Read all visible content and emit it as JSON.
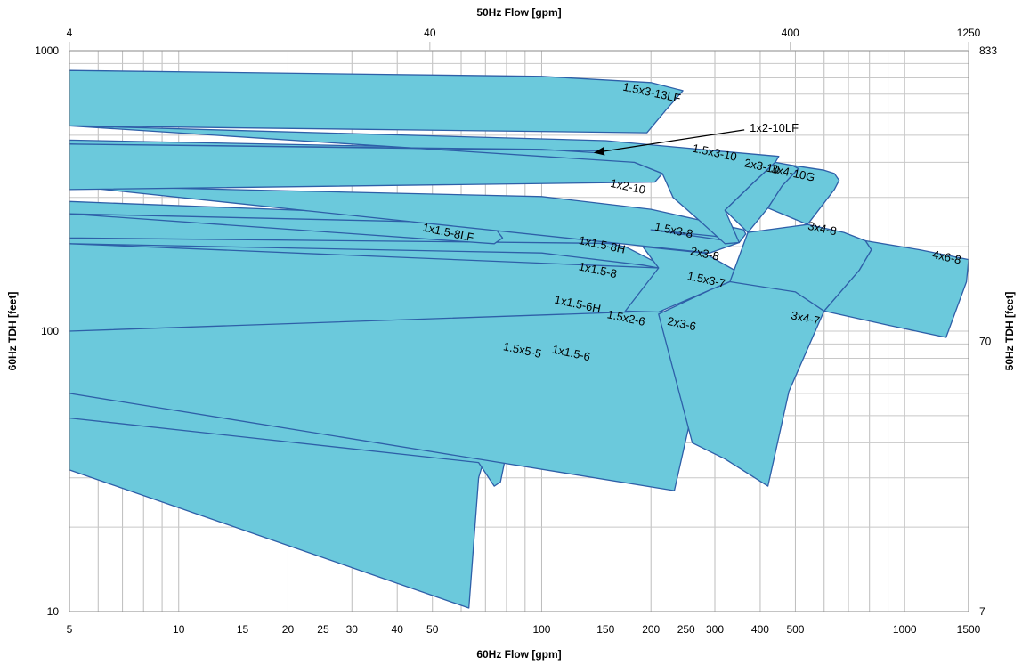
{
  "chart_data": {
    "type": "area",
    "title": "",
    "xlabel_bottom": "60Hz Flow [gpm]",
    "xlabel_top": "50Hz Flow [gpm]",
    "ylabel_left": "60Hz TDH [feet]",
    "ylabel_right": "50Hz TDH [feet]",
    "x_scale": "log",
    "y_scale": "log",
    "xlim": [
      5,
      1500
    ],
    "ylim": [
      10,
      1000
    ],
    "grid": true,
    "x_ticks_bottom": [
      5,
      10,
      15,
      20,
      25,
      30,
      40,
      50,
      100,
      150,
      200,
      250,
      300,
      400,
      500,
      1000,
      1500
    ],
    "x_ticks_top": [
      4,
      40,
      400,
      1250
    ],
    "y_ticks_left": [
      10,
      100,
      1000
    ],
    "y_ticks_right": [
      7,
      70,
      833
    ],
    "series": [
      {
        "name": "1.5x5-5",
        "label_at": [
          88,
          83
        ],
        "outline": [
          [
            5,
            104
          ],
          [
            30,
            99
          ],
          [
            55,
            93
          ],
          [
            80,
            86
          ],
          [
            84,
            80
          ],
          [
            67,
            30
          ],
          [
            63,
            10.3
          ],
          [
            5,
            32
          ]
        ]
      },
      {
        "name": "1x1.5-6",
        "label_at": [
          120,
          81
        ],
        "outline": [
          [
            5,
            148
          ],
          [
            50,
            133
          ],
          [
            100,
            115
          ],
          [
            125,
            102
          ],
          [
            135,
            93
          ],
          [
            129,
            84
          ],
          [
            91,
            39
          ],
          [
            85,
            38
          ],
          [
            80,
            37
          ],
          [
            77,
            29
          ],
          [
            74,
            28
          ],
          [
            67,
            34
          ],
          [
            5,
            49
          ]
        ]
      },
      {
        "name": "1x1.5-6H",
        "label_at": [
          125,
          121
        ],
        "outline": [
          [
            5,
            205
          ],
          [
            50,
            182
          ],
          [
            110,
            162
          ],
          [
            150,
            145
          ],
          [
            170,
            128
          ],
          [
            160,
            117
          ],
          [
            132,
            90
          ],
          [
            96,
            39.5
          ],
          [
            5,
            80
          ]
        ]
      },
      {
        "name": "1.5x2-6",
        "label_at": [
          170,
          108
        ],
        "outline": [
          [
            5,
            262
          ],
          [
            100,
            230
          ],
          [
            170,
            200
          ],
          [
            210,
            174
          ],
          [
            218,
            164
          ],
          [
            210,
            120
          ],
          [
            210,
            115
          ],
          [
            170,
            118
          ],
          [
            130,
            36
          ],
          [
            105,
            40
          ],
          [
            5,
            100
          ]
        ]
      },
      {
        "name": "2x3-6",
        "label_at": [
          242,
          103
        ],
        "outline": [
          [
            210,
            118
          ],
          [
            290,
            112
          ],
          [
            295,
            107
          ],
          [
            232,
            27
          ],
          [
            5,
            60
          ],
          [
            5,
            100
          ],
          [
            210,
            118
          ]
        ]
      },
      {
        "name": "1x1.5-8H",
        "label_at": [
          146,
          197
        ],
        "outline": [
          [
            5,
            290
          ],
          [
            100,
            250
          ],
          [
            170,
            220
          ],
          [
            190,
            205
          ],
          [
            5,
            215
          ]
        ]
      },
      {
        "name": "1x1.5-8",
        "label_at": [
          142,
          160
        ],
        "outline": [
          [
            5,
            205
          ],
          [
            100,
            190
          ],
          [
            190,
            172
          ],
          [
            210,
            168
          ]
        ]
      },
      {
        "name": "1.5x3-7",
        "label_at": [
          283,
          148
        ],
        "outline": [
          [
            190,
            200
          ],
          [
            280,
            190
          ],
          [
            340,
            165
          ],
          [
            350,
            155
          ],
          [
            290,
            140
          ],
          [
            210,
            117
          ],
          [
            170,
            118
          ],
          [
            210,
            168
          ],
          [
            190,
            200
          ]
        ]
      },
      {
        "name": "1x1.5-8LF",
        "label_at": [
          55,
          218
        ],
        "outline": [
          [
            5,
            262
          ],
          [
            50,
            245
          ],
          [
            75,
            230
          ],
          [
            78,
            215
          ],
          [
            74,
            205
          ]
        ]
      },
      {
        "name": "1.5x3-8",
        "label_at": [
          230,
          222
        ],
        "outline": [
          [
            5,
            330
          ],
          [
            100,
            302
          ],
          [
            200,
            272
          ],
          [
            280,
            247
          ],
          [
            360,
            230
          ],
          [
            365,
            222
          ],
          [
            350,
            207
          ],
          [
            290,
            190
          ]
        ]
      },
      {
        "name": "2x3-8",
        "label_at": [
          280,
          183
        ],
        "outline": [
          [
            200,
            230
          ],
          [
            300,
            218
          ],
          [
            350,
            207
          ]
        ]
      },
      {
        "name": "1x2-10",
        "label_at": [
          172,
          318
        ],
        "outline": [
          [
            5,
            480
          ],
          [
            100,
            445
          ],
          [
            180,
            400
          ],
          [
            215,
            365
          ],
          [
            205,
            340
          ],
          [
            5,
            320
          ]
        ]
      },
      {
        "name": "1.5x3-10",
        "label_at": [
          298,
          420
        ],
        "outline": [
          [
            5,
            540
          ],
          [
            150,
            478
          ],
          [
            300,
            440
          ],
          [
            450,
            420
          ],
          [
            440,
            400
          ],
          [
            380,
            335
          ],
          [
            320,
            270
          ],
          [
            350,
            207
          ],
          [
            320,
            205
          ],
          [
            270,
            250
          ],
          [
            230,
            300
          ],
          [
            215,
            365
          ],
          [
            180,
            400
          ]
        ]
      },
      {
        "name": "2x3-10",
        "label_at": [
          402,
          375
        ],
        "outline": [
          [
            440,
            400
          ],
          [
            490,
            390
          ],
          [
            510,
            380
          ],
          [
            460,
            330
          ],
          [
            420,
            275
          ],
          [
            370,
            225
          ],
          [
            320,
            270
          ],
          [
            380,
            335
          ],
          [
            440,
            400
          ]
        ]
      },
      {
        "name": "3x4-10G",
        "label_at": [
          490,
          355
        ],
        "outline": [
          [
            490,
            390
          ],
          [
            600,
            375
          ],
          [
            640,
            365
          ],
          [
            660,
            345
          ],
          [
            640,
            320
          ],
          [
            540,
            240
          ],
          [
            420,
            275
          ],
          [
            460,
            330
          ],
          [
            510,
            380
          ]
        ]
      },
      {
        "name": "3x4-8",
        "label_at": [
          590,
          225
        ],
        "outline": [
          [
            540,
            240
          ],
          [
            680,
            225
          ],
          [
            780,
            210
          ],
          [
            810,
            195
          ],
          [
            750,
            165
          ],
          [
            600,
            118
          ],
          [
            330,
            150
          ],
          [
            370,
            225
          ]
        ]
      },
      {
        "name": "4x6-8",
        "label_at": [
          1300,
          178
        ],
        "outline": [
          [
            780,
            210
          ],
          [
            1100,
            195
          ],
          [
            1500,
            180
          ],
          [
            1480,
            150
          ],
          [
            1300,
            95
          ],
          [
            900,
            105
          ],
          [
            600,
            118
          ],
          [
            750,
            165
          ],
          [
            810,
            195
          ]
        ]
      },
      {
        "name": "3x4-7",
        "label_at": [
          530,
          108
        ],
        "outline": [
          [
            330,
            150
          ],
          [
            500,
            138
          ],
          [
            600,
            118
          ],
          [
            480,
            61
          ],
          [
            420,
            28
          ],
          [
            320,
            35
          ],
          [
            260,
            40
          ],
          [
            210,
            115
          ],
          [
            290,
            140
          ]
        ]
      },
      {
        "name": "1.5x3-13LF",
        "label_at": [
          200,
          688
        ],
        "outline": [
          [
            5,
            850
          ],
          [
            100,
            810
          ],
          [
            200,
            770
          ],
          [
            245,
            720
          ],
          [
            220,
            615
          ],
          [
            195,
            510
          ],
          [
            5,
            540
          ]
        ]
      },
      {
        "name": "1x2-10LF",
        "label_at": [
          140,
          433
        ],
        "outline": [
          [
            5,
            465
          ],
          [
            100,
            445
          ],
          [
            140,
            433
          ],
          [
            145,
            440
          ]
        ]
      }
    ],
    "annotations": [
      {
        "text": "1x2-10LF",
        "type": "arrow-callout",
        "target": [
          140,
          433
        ],
        "text_at": [
          370,
          530
        ]
      }
    ]
  }
}
